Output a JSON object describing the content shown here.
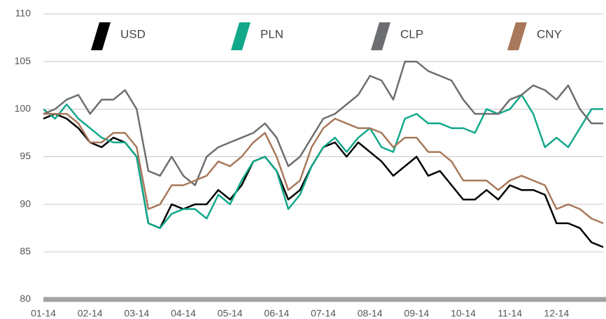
{
  "chart_data": {
    "type": "line",
    "categories": [
      "01-14",
      null,
      null,
      null,
      "02-14",
      null,
      null,
      null,
      "03-14",
      null,
      null,
      null,
      "04-14",
      null,
      null,
      null,
      "05-14",
      null,
      null,
      null,
      "06-14",
      null,
      null,
      null,
      "07-14",
      null,
      null,
      null,
      "08-14",
      null,
      null,
      null,
      "09-14",
      null,
      null,
      null,
      "10-14",
      null,
      null,
      null,
      "11-14",
      null,
      null,
      null,
      "12-14",
      null,
      null,
      null,
      null
    ],
    "series": [
      {
        "name": "USD",
        "color": "#000000",
        "values": [
          99,
          99.5,
          99,
          98,
          96.5,
          96,
          97,
          96.5,
          95,
          88,
          87.5,
          90,
          89.5,
          90,
          90,
          91.5,
          90.5,
          92,
          94.5,
          95,
          93.5,
          90.5,
          91.5,
          94,
          96,
          96.5,
          95,
          96.5,
          95.5,
          94.5,
          93,
          94,
          95,
          93,
          93.5,
          92,
          90.5,
          90.5,
          91.5,
          90.5,
          92,
          91.5,
          91.5,
          91,
          88,
          88,
          87.5,
          86,
          85.5
        ]
      },
      {
        "name": "PLN",
        "color": "#12a88a",
        "values": [
          100,
          99,
          100.5,
          99,
          98,
          97,
          96.5,
          96.5,
          95,
          88,
          87.5,
          89,
          89.5,
          89.5,
          88.5,
          91,
          90,
          92.5,
          94.5,
          95,
          93.5,
          89.5,
          91,
          94,
          96,
          97,
          95.5,
          97,
          98,
          96,
          95.5,
          99,
          99.5,
          98.5,
          98.5,
          98,
          98,
          97.5,
          100,
          99.5,
          100,
          101.5,
          99.5,
          96,
          97,
          96,
          98,
          100,
          100
        ]
      },
      {
        "name": "CLP",
        "color": "#6d6e71",
        "values": [
          99.5,
          100,
          101,
          101.5,
          99.5,
          101,
          101,
          102,
          100,
          93.5,
          93,
          95,
          93,
          92,
          95,
          96,
          96.5,
          97,
          97.5,
          98.5,
          97,
          94,
          95,
          97,
          99,
          99.5,
          100.5,
          101.5,
          103.5,
          103,
          101,
          105,
          105,
          104,
          103.5,
          103,
          101,
          99.5,
          99.5,
          99.5,
          101,
          101.5,
          102.5,
          102,
          101,
          102.5,
          100,
          98.5,
          98.5
        ]
      },
      {
        "name": "CNY",
        "color": "#a8785a",
        "values": [
          99.5,
          99.5,
          99.5,
          98.5,
          96.5,
          96.5,
          97.5,
          97.5,
          96,
          89.5,
          90,
          92,
          92,
          92.5,
          93,
          94.5,
          94,
          95,
          96.5,
          97.5,
          95,
          91.5,
          92.5,
          96,
          98,
          99,
          98.5,
          98,
          98,
          97.5,
          96,
          97,
          97,
          95.5,
          95.5,
          94.5,
          92.5,
          92.5,
          92.5,
          91.5,
          92.5,
          93,
          92.5,
          92,
          89.5,
          90,
          89.5,
          88.5,
          88
        ]
      }
    ],
    "ylim": [
      80,
      110
    ],
    "yticks": [
      80,
      85,
      90,
      95,
      100,
      105,
      110
    ],
    "grid": true
  }
}
